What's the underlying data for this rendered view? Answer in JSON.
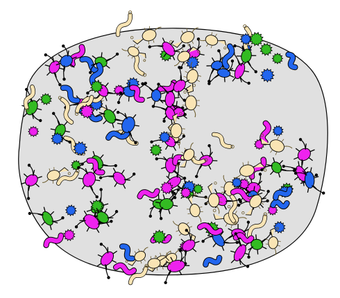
{
  "palette": {
    "background": "#ffffff",
    "blob_fill": "#e0e0e0",
    "outline": "#000000",
    "magenta": "#ee22ee",
    "blue": "#2266ee",
    "green": "#33bb22",
    "cream": "#f9e4b4"
  },
  "blob": {
    "label": "cell-blob",
    "visible_text": ""
  },
  "organism_types": [
    {
      "kind": "magenta-rod",
      "color": "magenta",
      "icon": "rod-bacterium-icon"
    },
    {
      "kind": "magenta-coccus",
      "color": "magenta",
      "icon": "spiky-coccus-icon"
    },
    {
      "kind": "blue-coccus",
      "color": "blue",
      "icon": "spiky-coccus-icon"
    },
    {
      "kind": "blue-rod",
      "color": "blue",
      "icon": "rod-bacterium-icon"
    },
    {
      "kind": "green-coccus",
      "color": "green",
      "icon": "spiky-coccus-icon"
    },
    {
      "kind": "cream-virus",
      "color": "cream",
      "icon": "phage-icon"
    }
  ]
}
